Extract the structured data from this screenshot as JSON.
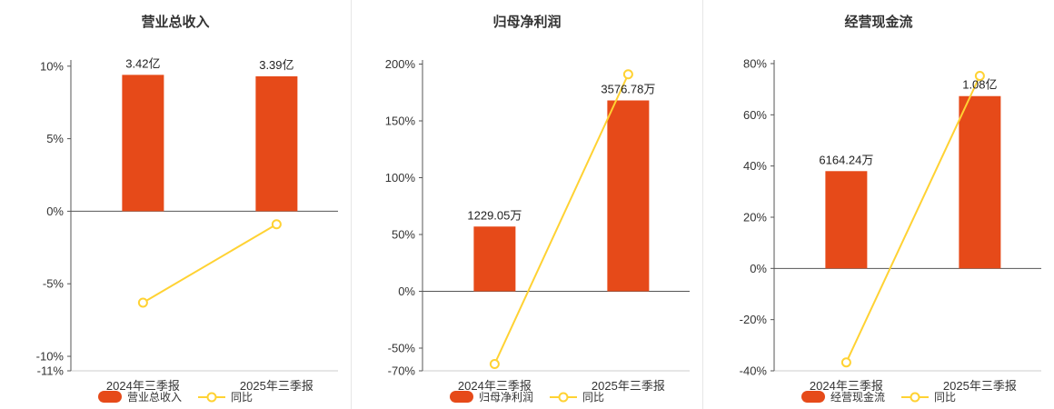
{
  "colors": {
    "bar": "#e64a19",
    "line": "#ffd233",
    "axis": "#555555",
    "grid": "#cccccc",
    "tick_text": "#333333",
    "label_text": "#222222",
    "divider": "#e6e6e6",
    "background": "#ffffff"
  },
  "chart_data": [
    {
      "type": "bar+line",
      "title": "营业总收入",
      "categories": [
        "2024年三季报",
        "2025年三季报"
      ],
      "bar_series": {
        "name": "营业总收入",
        "labels": [
          "3.42亿",
          "3.39亿"
        ],
        "values_axis_pct": [
          9.4,
          9.3
        ]
      },
      "line_series": {
        "name": "同比",
        "values_pct": [
          -6.3,
          -0.9
        ]
      },
      "y_ticks_pct": [
        10,
        5,
        0,
        -5,
        -10,
        -11
      ],
      "ylim_pct": [
        -11,
        10.3
      ],
      "y_unit": "%",
      "legend_position": "bottom"
    },
    {
      "type": "bar+line",
      "title": "归母净利润",
      "categories": [
        "2024年三季报",
        "2025年三季报"
      ],
      "bar_series": {
        "name": "归母净利润",
        "labels": [
          "1229.05万",
          "3576.78万"
        ],
        "values_axis_pct": [
          57,
          168
        ]
      },
      "line_series": {
        "name": "同比",
        "values_pct": [
          -64,
          191
        ]
      },
      "y_ticks_pct": [
        200,
        150,
        100,
        50,
        0,
        -50,
        -70
      ],
      "ylim_pct": [
        -70,
        202
      ],
      "y_unit": "%",
      "legend_position": "bottom"
    },
    {
      "type": "bar+line",
      "title": "经营现金流",
      "categories": [
        "2024年三季报",
        "2025年三季报"
      ],
      "bar_series": {
        "name": "经营现金流",
        "labels": [
          "6164.24万",
          "1.08亿"
        ],
        "values_axis_pct": [
          38,
          67.3
        ]
      },
      "line_series": {
        "name": "同比",
        "values_pct": [
          -36.7,
          75.2
        ]
      },
      "y_ticks_pct": [
        80,
        60,
        40,
        20,
        0,
        -20,
        -40
      ],
      "ylim_pct": [
        -40,
        80.7
      ],
      "y_unit": "%",
      "legend_position": "bottom"
    }
  ]
}
